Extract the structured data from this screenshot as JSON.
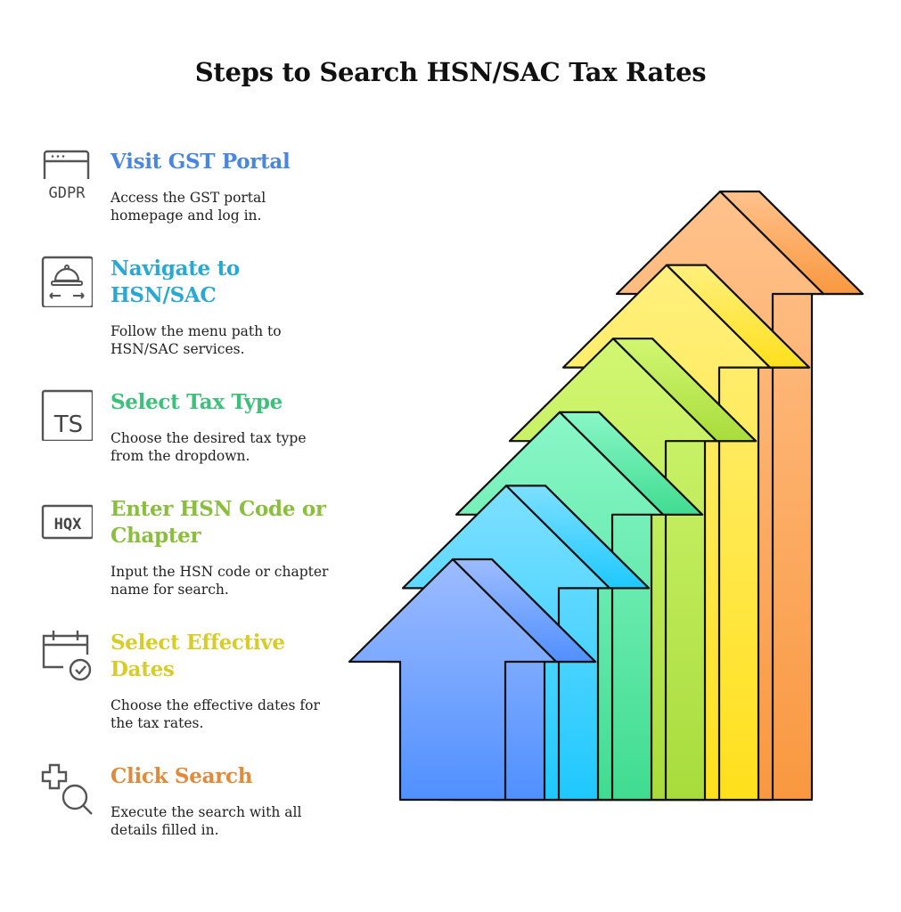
{
  "title": "Steps to Search HSN/SAC Tax Rates",
  "steps": [
    {
      "heading": "Visit GST Portal",
      "description": "Access the GST portal homepage and log in.",
      "color": "#4a86e0",
      "icon": "browser-gdpr-icon",
      "icon_text": "GDPR"
    },
    {
      "heading": "Navigate to HSN/SAC",
      "description": "Follow the menu path to HSN/SAC services.",
      "color": "#2aa8d4",
      "icon": "service-cloche-navigation-icon"
    },
    {
      "heading": "Select Tax Type",
      "description": "Choose the desired tax type from the dropdown.",
      "color": "#3cc07a",
      "icon": "ts-box-icon",
      "icon_text": "TS"
    },
    {
      "heading": "Enter HSN Code or Chapter",
      "description": "Input the HSN code or chapter name for search.",
      "color": "#8abf3c",
      "icon": "hqx-code-icon",
      "icon_text": "HQX"
    },
    {
      "heading": "Select Effective Dates",
      "description": "Choose the effective dates for the tax rates.",
      "color": "#d8cc28",
      "icon": "calendar-check-icon"
    },
    {
      "heading": "Click Search",
      "description": "Execute the search with all details filled in.",
      "color": "#e08a3c",
      "icon": "plus-search-icon"
    }
  ],
  "arrows": [
    {
      "top": "#9dbcff",
      "bottom": "#5090ff"
    },
    {
      "top": "#7ee0ff",
      "bottom": "#1ec8ff"
    },
    {
      "top": "#8af7c8",
      "bottom": "#40dc90"
    },
    {
      "top": "#d2f772",
      "bottom": "#a8dc3c"
    },
    {
      "top": "#fff07e",
      "bottom": "#ffe01c"
    },
    {
      "top": "#ffc28c",
      "bottom": "#f99840"
    }
  ]
}
